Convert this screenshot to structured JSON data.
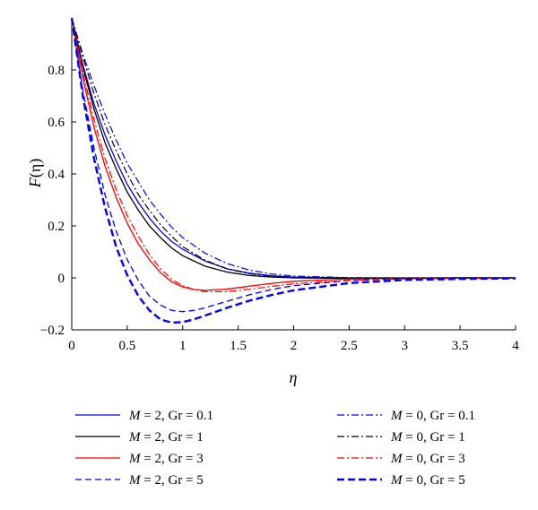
{
  "chart_data": {
    "type": "line",
    "title": "",
    "xlabel": "η",
    "ylabel_main": "F",
    "ylabel_arg": "(η)",
    "xlim": [
      0,
      4
    ],
    "ylim": [
      -0.2,
      1.0
    ],
    "xticks": [
      0,
      0.5,
      1,
      1.5,
      2,
      2.5,
      3,
      3.5,
      4
    ],
    "xtick_labels": [
      "0",
      "0.5",
      "1",
      "1.5",
      "2",
      "2.5",
      "3",
      "3.5",
      "4"
    ],
    "yticks": [
      -0.2,
      0,
      0.2,
      0.4,
      0.6,
      0.8
    ],
    "ytick_labels": [
      "−0.2",
      "0",
      "0.2",
      "0.4",
      "0.6",
      "0.8"
    ],
    "grid": false,
    "legend_position": "bottom",
    "series": [
      {
        "name": "M = 2, Gr = 0.1",
        "legend_italic": "M",
        "legend_rest": " = 2, Gr = 0.1",
        "color": "#0000ff",
        "style": "solid",
        "x": [
          0,
          0.1,
          0.2,
          0.3,
          0.4,
          0.5,
          0.6,
          0.7,
          0.8,
          0.9,
          1.0,
          1.2,
          1.4,
          1.6,
          1.8,
          2.0,
          2.5,
          3.0,
          3.5,
          4.0
        ],
        "y": [
          1.0,
          0.82,
          0.67,
          0.55,
          0.45,
          0.36,
          0.29,
          0.23,
          0.18,
          0.14,
          0.11,
          0.065,
          0.035,
          0.018,
          0.008,
          0.003,
          0.0,
          0.0,
          0.0,
          0.0
        ]
      },
      {
        "name": "M = 2, Gr = 1",
        "legend_italic": "M",
        "legend_rest": " = 2, Gr = 1",
        "color": "#000000",
        "style": "solid",
        "x": [
          0,
          0.1,
          0.2,
          0.3,
          0.4,
          0.5,
          0.6,
          0.7,
          0.8,
          0.9,
          1.0,
          1.2,
          1.4,
          1.6,
          1.8,
          2.0,
          2.5,
          3.0,
          3.5,
          4.0
        ],
        "y": [
          1.0,
          0.81,
          0.65,
          0.52,
          0.42,
          0.33,
          0.26,
          0.2,
          0.155,
          0.115,
          0.085,
          0.045,
          0.022,
          0.009,
          0.003,
          0.0,
          -0.002,
          -0.001,
          0.0,
          0.0
        ]
      },
      {
        "name": "M = 2, Gr = 3",
        "legend_italic": "M",
        "legend_rest": " = 2, Gr = 3",
        "color": "#ff0000",
        "style": "solid",
        "x": [
          0,
          0.1,
          0.2,
          0.3,
          0.4,
          0.5,
          0.6,
          0.7,
          0.8,
          0.9,
          1.0,
          1.1,
          1.2,
          1.4,
          1.6,
          1.8,
          2.0,
          2.5,
          3.0,
          3.5,
          4.0
        ],
        "y": [
          1.0,
          0.77,
          0.58,
          0.43,
          0.31,
          0.21,
          0.13,
          0.07,
          0.02,
          -0.015,
          -0.035,
          -0.045,
          -0.048,
          -0.043,
          -0.032,
          -0.021,
          -0.013,
          -0.004,
          -0.001,
          0.0,
          0.0
        ]
      },
      {
        "name": "M = 2, Gr = 5",
        "legend_italic": "M",
        "legend_rest": " = 2, Gr = 5",
        "color": "#0000ff",
        "style": "dashed",
        "x": [
          0,
          0.1,
          0.2,
          0.3,
          0.4,
          0.5,
          0.6,
          0.7,
          0.8,
          0.9,
          1.0,
          1.1,
          1.2,
          1.4,
          1.6,
          1.8,
          2.0,
          2.5,
          3.0,
          3.5,
          4.0
        ],
        "y": [
          1.0,
          0.72,
          0.5,
          0.32,
          0.18,
          0.07,
          -0.01,
          -0.07,
          -0.105,
          -0.125,
          -0.13,
          -0.125,
          -0.115,
          -0.09,
          -0.065,
          -0.045,
          -0.03,
          -0.01,
          -0.003,
          0.0,
          0.0
        ]
      },
      {
        "name": "M = 0, Gr = 0.1",
        "legend_italic": "M",
        "legend_rest": " = 0, Gr = 0.1",
        "color": "#0000ff",
        "style": "dashdot",
        "x": [
          0,
          0.1,
          0.2,
          0.3,
          0.4,
          0.5,
          0.6,
          0.7,
          0.8,
          0.9,
          1.0,
          1.2,
          1.4,
          1.6,
          1.8,
          2.0,
          2.5,
          3.0,
          3.5,
          4.0
        ],
        "y": [
          1.0,
          0.86,
          0.74,
          0.63,
          0.53,
          0.44,
          0.37,
          0.3,
          0.245,
          0.195,
          0.155,
          0.095,
          0.055,
          0.03,
          0.015,
          0.007,
          0.001,
          0.0,
          0.0,
          0.0
        ]
      },
      {
        "name": "M = 0, Gr = 1",
        "legend_italic": "M",
        "legend_rest": " = 0, Gr = 1",
        "color": "#000000",
        "style": "dashdot",
        "x": [
          0,
          0.1,
          0.2,
          0.3,
          0.4,
          0.5,
          0.6,
          0.7,
          0.8,
          0.9,
          1.0,
          1.2,
          1.4,
          1.6,
          1.8,
          2.0,
          2.5,
          3.0,
          3.5,
          4.0
        ],
        "y": [
          1.0,
          0.85,
          0.71,
          0.59,
          0.49,
          0.4,
          0.32,
          0.26,
          0.205,
          0.16,
          0.12,
          0.068,
          0.035,
          0.016,
          0.006,
          0.001,
          -0.002,
          -0.001,
          0.0,
          0.0
        ]
      },
      {
        "name": "M = 0, Gr = 3",
        "legend_italic": "M",
        "legend_rest": " = 0, Gr = 3",
        "color": "#ff0000",
        "style": "dashdot",
        "x": [
          0,
          0.1,
          0.2,
          0.3,
          0.4,
          0.5,
          0.6,
          0.7,
          0.8,
          0.9,
          1.0,
          1.1,
          1.2,
          1.4,
          1.6,
          1.8,
          2.0,
          2.5,
          3.0,
          3.5,
          4.0
        ],
        "y": [
          1.0,
          0.79,
          0.61,
          0.46,
          0.34,
          0.24,
          0.16,
          0.09,
          0.035,
          -0.005,
          -0.03,
          -0.045,
          -0.053,
          -0.053,
          -0.044,
          -0.033,
          -0.023,
          -0.009,
          -0.004,
          -0.002,
          -0.001
        ]
      },
      {
        "name": "M = 0, Gr = 5",
        "legend_italic": "M",
        "legend_rest": " = 0, Gr = 5",
        "color": "#0000ff",
        "style": "bolddash",
        "x": [
          0,
          0.1,
          0.2,
          0.3,
          0.4,
          0.5,
          0.6,
          0.7,
          0.8,
          0.9,
          1.0,
          1.1,
          1.2,
          1.4,
          1.6,
          1.8,
          2.0,
          2.5,
          3.0,
          3.5,
          4.0
        ],
        "y": [
          1.0,
          0.7,
          0.46,
          0.27,
          0.12,
          0.01,
          -0.07,
          -0.125,
          -0.16,
          -0.172,
          -0.17,
          -0.16,
          -0.145,
          -0.115,
          -0.088,
          -0.066,
          -0.048,
          -0.02,
          -0.008,
          -0.004,
          -0.002
        ]
      }
    ]
  }
}
